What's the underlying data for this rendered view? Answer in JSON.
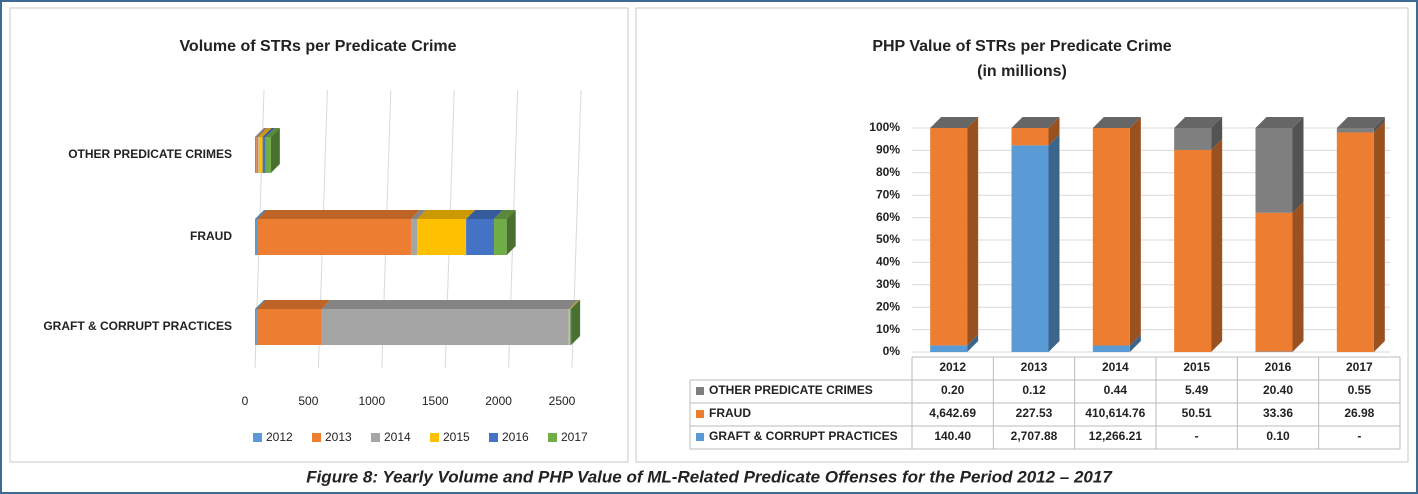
{
  "chart_data": [
    {
      "type": "bar",
      "orientation": "horizontal",
      "stacked": true,
      "title": "Volume of STRs per Predicate Crime",
      "categories": [
        "GRAFT & CORRUPT PRACTICES",
        "FRAUD",
        "OTHER PREDICATE CRIMES"
      ],
      "series": [
        {
          "name": "2012",
          "color": "#5b9bd5",
          "values": [
            15,
            20,
            10
          ]
        },
        {
          "name": "2013",
          "color": "#ed7d31",
          "values": [
            510,
            1210,
            15
          ]
        },
        {
          "name": "2014",
          "color": "#a5a5a5",
          "values": [
            1950,
            50,
            5
          ]
        },
        {
          "name": "2015",
          "color": "#ffc000",
          "values": [
            10,
            385,
            30
          ]
        },
        {
          "name": "2016",
          "color": "#4472c4",
          "values": [
            3,
            220,
            25
          ]
        },
        {
          "name": "2017",
          "color": "#70ad47",
          "values": [
            5,
            100,
            40
          ]
        }
      ],
      "xlim": [
        0,
        2500
      ],
      "xticks": [
        0,
        500,
        1000,
        1500,
        2000,
        2500
      ],
      "grid": true,
      "legend": "bottom"
    },
    {
      "type": "bar",
      "stacked": "percent",
      "title": "PHP Value of STRs per Predicate Crime",
      "subtitle": "(in millions)",
      "categories": [
        "2012",
        "2013",
        "2014",
        "2015",
        "2016",
        "2017"
      ],
      "series": [
        {
          "name": "GRAFT & CORRUPT PRACTICES",
          "color": "#5b9bd5",
          "values": [
            140.4,
            2707.88,
            12266.21,
            null,
            0.1,
            null
          ],
          "value_labels": [
            "140.40",
            "2,707.88",
            "12,266.21",
            "-",
            "0.10",
            "-"
          ]
        },
        {
          "name": "FRAUD",
          "color": "#ed7d31",
          "values": [
            4642.69,
            227.53,
            410614.76,
            50.51,
            33.36,
            26.98
          ],
          "value_labels": [
            "4,642.69",
            "227.53",
            "410,614.76",
            "50.51",
            "33.36",
            "26.98"
          ]
        },
        {
          "name": "OTHER PREDICATE CRIMES",
          "color": "#7f7f7f",
          "values": [
            0.2,
            0.12,
            0.44,
            5.49,
            20.4,
            0.55
          ],
          "value_labels": [
            "0.20",
            "0.12",
            "0.44",
            "5.49",
            "20.40",
            "0.55"
          ]
        }
      ],
      "ylim": [
        0,
        100
      ],
      "yticks": [
        {
          "value": 0,
          "label": "0%"
        },
        {
          "value": 10,
          "label": "10%"
        },
        {
          "value": 20,
          "label": "20%"
        },
        {
          "value": 30,
          "label": "30%"
        },
        {
          "value": 40,
          "label": "40%"
        },
        {
          "value": 50,
          "label": "50%"
        },
        {
          "value": 60,
          "label": "60%"
        },
        {
          "value": 70,
          "label": "70%"
        },
        {
          "value": 80,
          "label": "80%"
        },
        {
          "value": 90,
          "label": "90%"
        },
        {
          "value": 100,
          "label": "100%"
        }
      ],
      "grid": true,
      "legend": "table"
    }
  ],
  "caption": "Figure 8: Yearly Volume and PHP Value of ML-Related Predicate Offenses for the Period 2012 – 2017"
}
